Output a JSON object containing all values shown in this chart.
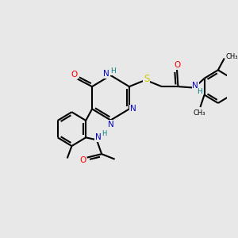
{
  "background_color": "#e8e8e8",
  "bond_color": "#000000",
  "bond_width": 1.5,
  "atom_colors": {
    "C": "#000000",
    "N": "#0000cc",
    "O": "#ff0000",
    "S": "#cccc00",
    "H": "#008080"
  },
  "font_size": 7.5,
  "fig_width": 3.0,
  "fig_height": 3.0,
  "dpi": 100,
  "xlim": [
    0,
    10
  ],
  "ylim": [
    0,
    10
  ]
}
